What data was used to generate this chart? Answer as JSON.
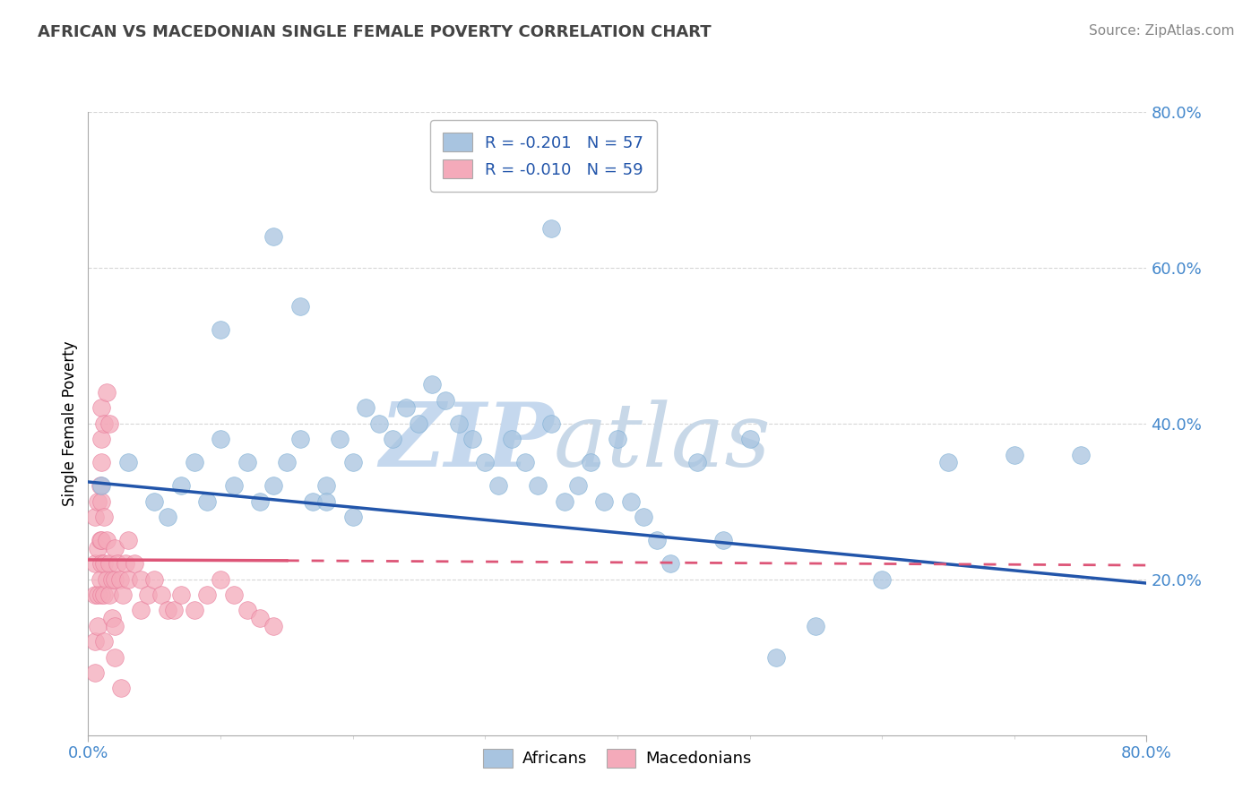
{
  "title": "AFRICAN VS MACEDONIAN SINGLE FEMALE POVERTY CORRELATION CHART",
  "source": "Source: ZipAtlas.com",
  "ylabel": "Single Female Poverty",
  "legend_africans": "Africans",
  "legend_macedonians": "Macedonians",
  "african_R": "-0.201",
  "african_N": "57",
  "macedonian_R": "-0.010",
  "macedonian_N": "59",
  "african_color": "#A8C4E0",
  "macedonian_color": "#F4AABA",
  "african_edge_color": "#7AADD4",
  "macedonian_edge_color": "#E87898",
  "african_line_color": "#2255AA",
  "macedonian_line_color": "#DD5577",
  "watermark_zip_color": "#C8DCF0",
  "watermark_atlas_color": "#D0D8E8",
  "grid_color": "#CCCCCC",
  "tick_color": "#4488CC",
  "title_color": "#444444",
  "source_color": "#888888",
  "xmin": 0.0,
  "xmax": 0.8,
  "ymin": 0.0,
  "ymax": 0.8,
  "africans_x": [
    0.01,
    0.03,
    0.05,
    0.06,
    0.07,
    0.08,
    0.09,
    0.1,
    0.11,
    0.12,
    0.13,
    0.14,
    0.15,
    0.16,
    0.17,
    0.18,
    0.19,
    0.2,
    0.21,
    0.22,
    0.23,
    0.24,
    0.25,
    0.26,
    0.27,
    0.28,
    0.29,
    0.3,
    0.31,
    0.32,
    0.33,
    0.34,
    0.35,
    0.36,
    0.37,
    0.38,
    0.39,
    0.4,
    0.41,
    0.42,
    0.43,
    0.44,
    0.46,
    0.48,
    0.5,
    0.52,
    0.55,
    0.6,
    0.65,
    0.7,
    0.75,
    0.14,
    0.35,
    0.1,
    0.16,
    0.18,
    0.2
  ],
  "africans_y": [
    0.32,
    0.35,
    0.3,
    0.28,
    0.32,
    0.35,
    0.3,
    0.38,
    0.32,
    0.35,
    0.3,
    0.32,
    0.35,
    0.38,
    0.3,
    0.32,
    0.38,
    0.35,
    0.42,
    0.4,
    0.38,
    0.42,
    0.4,
    0.45,
    0.43,
    0.4,
    0.38,
    0.35,
    0.32,
    0.38,
    0.35,
    0.32,
    0.4,
    0.3,
    0.32,
    0.35,
    0.3,
    0.38,
    0.3,
    0.28,
    0.25,
    0.22,
    0.35,
    0.25,
    0.38,
    0.1,
    0.14,
    0.2,
    0.35,
    0.36,
    0.36,
    0.64,
    0.65,
    0.52,
    0.55,
    0.3,
    0.28
  ],
  "macedonians_x": [
    0.005,
    0.005,
    0.005,
    0.005,
    0.005,
    0.007,
    0.007,
    0.007,
    0.007,
    0.009,
    0.009,
    0.009,
    0.01,
    0.01,
    0.01,
    0.01,
    0.01,
    0.012,
    0.012,
    0.012,
    0.012,
    0.014,
    0.014,
    0.016,
    0.016,
    0.018,
    0.018,
    0.02,
    0.02,
    0.02,
    0.022,
    0.024,
    0.026,
    0.028,
    0.03,
    0.03,
    0.035,
    0.04,
    0.04,
    0.045,
    0.05,
    0.055,
    0.06,
    0.065,
    0.07,
    0.08,
    0.09,
    0.1,
    0.11,
    0.12,
    0.13,
    0.14,
    0.01,
    0.01,
    0.012,
    0.014,
    0.016,
    0.02,
    0.025
  ],
  "macedonians_y": [
    0.28,
    0.22,
    0.18,
    0.12,
    0.08,
    0.3,
    0.24,
    0.18,
    0.14,
    0.32,
    0.25,
    0.2,
    0.35,
    0.3,
    0.25,
    0.22,
    0.18,
    0.28,
    0.22,
    0.18,
    0.12,
    0.25,
    0.2,
    0.22,
    0.18,
    0.2,
    0.15,
    0.24,
    0.2,
    0.14,
    0.22,
    0.2,
    0.18,
    0.22,
    0.25,
    0.2,
    0.22,
    0.2,
    0.16,
    0.18,
    0.2,
    0.18,
    0.16,
    0.16,
    0.18,
    0.16,
    0.18,
    0.2,
    0.18,
    0.16,
    0.15,
    0.14,
    0.42,
    0.38,
    0.4,
    0.44,
    0.4,
    0.1,
    0.06
  ],
  "af_trend_x0": 0.0,
  "af_trend_x1": 0.8,
  "af_trend_y0": 0.325,
  "af_trend_y1": 0.195,
  "mac_trend_x0": 0.0,
  "mac_trend_x1": 0.8,
  "mac_trend_y0": 0.225,
  "mac_trend_y1": 0.218
}
